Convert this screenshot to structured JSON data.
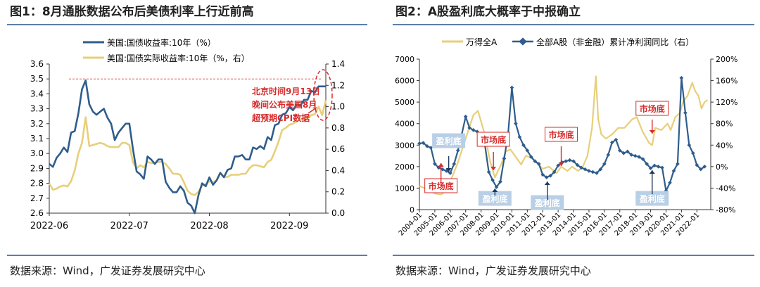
{
  "left": {
    "title": "图1：8月通胀数据公布后美债利率上行近前高",
    "source": "数据来源：Wind，广发证券发展研究中心",
    "annotation": [
      "北京时间9月13日",
      "晚间公布美国8月",
      "超预期CPI数据"
    ],
    "chart_data": {
      "type": "line",
      "title": "图1：8月通胀数据公布后美债利率上行近前高",
      "x_tick_labels": [
        "2022-06",
        "2022-07",
        "2022-08",
        "2022-09"
      ],
      "x": [
        0,
        1,
        2,
        3,
        4,
        5,
        6,
        7,
        8,
        9,
        10,
        11,
        12,
        13,
        14,
        15,
        16,
        17,
        18,
        19,
        20,
        21,
        22,
        23,
        24,
        25,
        26,
        27,
        28,
        29,
        30,
        31,
        32,
        33,
        34,
        35,
        36,
        37,
        38,
        39,
        40,
        41,
        42,
        43,
        44,
        45,
        46,
        47,
        48,
        49,
        50,
        51,
        52,
        53,
        54,
        55,
        56,
        57,
        58,
        59,
        60,
        61,
        62,
        63,
        64,
        65,
        66,
        67,
        68,
        69,
        70,
        71,
        72,
        73,
        74,
        75,
        76
      ],
      "ylim_left": [
        2.6,
        3.6
      ],
      "yticks_left": [
        "2.6",
        "2.7",
        "2.8",
        "2.9",
        "3.0",
        "3.1",
        "3.2",
        "3.3",
        "3.4",
        "3.5",
        "3.6"
      ],
      "ylim_right": [
        0.0,
        1.4
      ],
      "yticks_right": [
        "0.0",
        "0.2",
        "0.4",
        "0.6",
        "0.8",
        "1.0",
        "1.2",
        "1.4"
      ],
      "reference_line": 3.5,
      "series": [
        {
          "name": "美国:国债收益率:10年（%）",
          "axis": "left",
          "color": "#2f5d8c",
          "values": [
            2.93,
            2.91,
            2.97,
            3.0,
            3.04,
            3.01,
            3.14,
            3.15,
            3.27,
            3.43,
            3.49,
            3.33,
            3.28,
            3.26,
            3.28,
            3.3,
            3.24,
            3.2,
            3.09,
            3.14,
            3.17,
            3.2,
            3.2,
            3.03,
            2.88,
            2.86,
            2.83,
            2.98,
            2.96,
            2.93,
            2.96,
            2.96,
            2.81,
            2.77,
            2.74,
            2.74,
            2.78,
            2.75,
            2.67,
            2.65,
            2.6,
            2.72,
            2.8,
            2.78,
            2.84,
            2.79,
            2.82,
            2.87,
            2.84,
            2.89,
            2.9,
            2.98,
            2.98,
            2.99,
            2.96,
            2.96,
            3.04,
            3.03,
            3.05,
            3.03,
            3.11,
            3.09,
            3.19,
            3.2,
            3.26,
            3.27,
            3.31,
            3.29,
            3.33,
            3.32,
            3.36,
            3.36,
            3.42,
            3.41,
            3.45,
            3.45,
            3.45
          ]
        },
        {
          "name": "美国:国债实际收益率:10年（%，右）",
          "axis": "right",
          "color": "#e7cf7a",
          "values": [
            0.28,
            0.22,
            0.23,
            0.25,
            0.26,
            0.25,
            0.3,
            0.4,
            0.56,
            0.66,
            0.9,
            0.63,
            0.64,
            0.65,
            0.66,
            0.65,
            0.63,
            0.62,
            0.62,
            0.62,
            0.66,
            0.66,
            0.64,
            0.48,
            0.42,
            0.45,
            0.43,
            0.48,
            0.47,
            0.47,
            0.48,
            0.48,
            0.46,
            0.42,
            0.37,
            0.37,
            0.36,
            0.29,
            0.21,
            0.18,
            0.17,
            0.2,
            0.26,
            0.27,
            0.3,
            0.29,
            0.31,
            0.38,
            0.34,
            0.34,
            0.36,
            0.36,
            0.36,
            0.37,
            0.37,
            0.42,
            0.45,
            0.45,
            0.44,
            0.43,
            0.48,
            0.5,
            0.58,
            0.67,
            0.78,
            0.8,
            0.83,
            0.84,
            0.86,
            0.88,
            0.89,
            0.89,
            0.92,
            0.93,
            1.0,
            0.92,
            1.06
          ]
        }
      ]
    }
  },
  "right": {
    "title": "图2：A股盈利底大概率于中报确立",
    "source": "数据来源：Wind，广发证券发展研究中心",
    "tags": {
      "profit_bottom": "盈利底",
      "market_bottom": "市场底"
    },
    "chart_data": {
      "type": "line",
      "title": "图2：A股盈利底大概率于中报确立",
      "x_tick_labels": [
        "2004-01",
        "2005-01",
        "2006-01",
        "2007-01",
        "2008-01",
        "2009-01",
        "2010-01",
        "2011-01",
        "2012-01",
        "2013-01",
        "2014-01",
        "2015-01",
        "2016-01",
        "2017-01",
        "2018-01",
        "2019-01",
        "2020-01",
        "2021-01",
        "2022-01"
      ],
      "xlim": [
        2004.0,
        2022.9
      ],
      "ylim_left": [
        0,
        7000
      ],
      "yticks_left": [
        "0",
        "1000",
        "2000",
        "3000",
        "4000",
        "5000",
        "6000",
        "7000"
      ],
      "ylim_right": [
        -80,
        200
      ],
      "yticks_right": [
        "-80%",
        "-40%",
        "0%",
        "40%",
        "80%",
        "120%",
        "160%",
        "200%"
      ],
      "series": [
        {
          "name": "万得全A",
          "axis": "left",
          "color": "#e7cf7a",
          "x": [
            2004.0,
            2004.3,
            2004.6,
            2005.0,
            2005.4,
            2005.6,
            2006.0,
            2006.5,
            2007.0,
            2007.5,
            2007.8,
            2008.2,
            2008.6,
            2008.9,
            2009.3,
            2009.6,
            2009.9,
            2010.2,
            2010.6,
            2010.9,
            2011.3,
            2011.7,
            2012.0,
            2012.4,
            2012.9,
            2013.2,
            2013.6,
            2013.9,
            2014.3,
            2014.6,
            2014.9,
            2015.2,
            2015.45,
            2015.6,
            2015.8,
            2016.1,
            2016.5,
            2016.9,
            2017.3,
            2017.8,
            2018.1,
            2018.5,
            2018.9,
            2019.1,
            2019.3,
            2019.7,
            2020.1,
            2020.3,
            2020.6,
            2020.9,
            2021.1,
            2021.4,
            2021.7,
            2021.9,
            2022.1,
            2022.3,
            2022.5,
            2022.7
          ],
          "values": [
            1100,
            1000,
            900,
            750,
            700,
            800,
            1300,
            2200,
            3300,
            4400,
            4600,
            3600,
            2200,
            1500,
            2100,
            2700,
            2800,
            2500,
            2100,
            2500,
            2400,
            2100,
            1900,
            2000,
            1700,
            2000,
            1800,
            2000,
            1800,
            2000,
            2500,
            3800,
            6200,
            4200,
            3500,
            3300,
            3500,
            3800,
            3800,
            4200,
            4300,
            3600,
            3100,
            3000,
            3800,
            3700,
            4000,
            3700,
            4300,
            4500,
            5000,
            5300,
            5900,
            5500,
            5300,
            4700,
            5000,
            5100
          ]
        },
        {
          "name": "全部A股（非金融）累计净利润同比（右）",
          "axis": "right",
          "color": "#2f5d8c",
          "x": [
            2004.0,
            2004.25,
            2004.5,
            2004.75,
            2005.0,
            2005.25,
            2005.5,
            2005.75,
            2006.0,
            2006.25,
            2006.5,
            2006.75,
            2007.0,
            2007.25,
            2007.5,
            2007.75,
            2008.0,
            2008.25,
            2008.5,
            2008.75,
            2009.0,
            2009.25,
            2009.5,
            2009.75,
            2010.0,
            2010.25,
            2010.5,
            2010.75,
            2011.0,
            2011.25,
            2011.5,
            2011.75,
            2012.0,
            2012.25,
            2012.5,
            2012.75,
            2013.0,
            2013.25,
            2013.5,
            2013.75,
            2014.0,
            2014.25,
            2014.5,
            2014.75,
            2015.0,
            2015.25,
            2015.5,
            2015.75,
            2016.0,
            2016.25,
            2016.5,
            2016.75,
            2017.0,
            2017.25,
            2017.5,
            2017.75,
            2018.0,
            2018.25,
            2018.5,
            2018.75,
            2019.0,
            2019.25,
            2019.5,
            2019.75,
            2020.0,
            2020.25,
            2020.5,
            2020.75,
            2021.0,
            2021.25,
            2021.5,
            2021.75,
            2022.0,
            2022.25,
            2022.5
          ],
          "values": [
            43,
            44,
            38,
            35,
            5,
            -2,
            -5,
            -8,
            -12,
            5,
            30,
            60,
            93,
            72,
            68,
            65,
            50,
            40,
            -10,
            -25,
            -38,
            -28,
            15,
            60,
            147,
            80,
            55,
            40,
            30,
            18,
            10,
            5,
            -15,
            -20,
            -17,
            -10,
            2,
            8,
            10,
            12,
            10,
            3,
            -2,
            -5,
            -8,
            -10,
            -12,
            -5,
            5,
            22,
            45,
            50,
            30,
            25,
            28,
            22,
            20,
            18,
            14,
            5,
            -3,
            2,
            0,
            -2,
            -45,
            -30,
            -8,
            5,
            165,
            100,
            40,
            25,
            3,
            -5,
            0
          ]
        }
      ],
      "annotations": [
        {
          "label": "盈利底",
          "x": 2005.9,
          "kind": "profit_bottom"
        },
        {
          "label": "盈利底",
          "x": 2008.9,
          "kind": "profit_bottom"
        },
        {
          "label": "盈利底",
          "x": 2012.3,
          "kind": "profit_bottom"
        },
        {
          "label": "盈利底",
          "x": 2019.1,
          "kind": "profit_bottom"
        },
        {
          "label": "市场底",
          "x": 2005.4,
          "kind": "market_bottom"
        },
        {
          "label": "市场底",
          "x": 2008.8,
          "kind": "market_bottom"
        },
        {
          "label": "市场底",
          "x": 2013.2,
          "kind": "market_bottom"
        },
        {
          "label": "市场底",
          "x": 2019.1,
          "kind": "market_bottom"
        }
      ]
    }
  }
}
